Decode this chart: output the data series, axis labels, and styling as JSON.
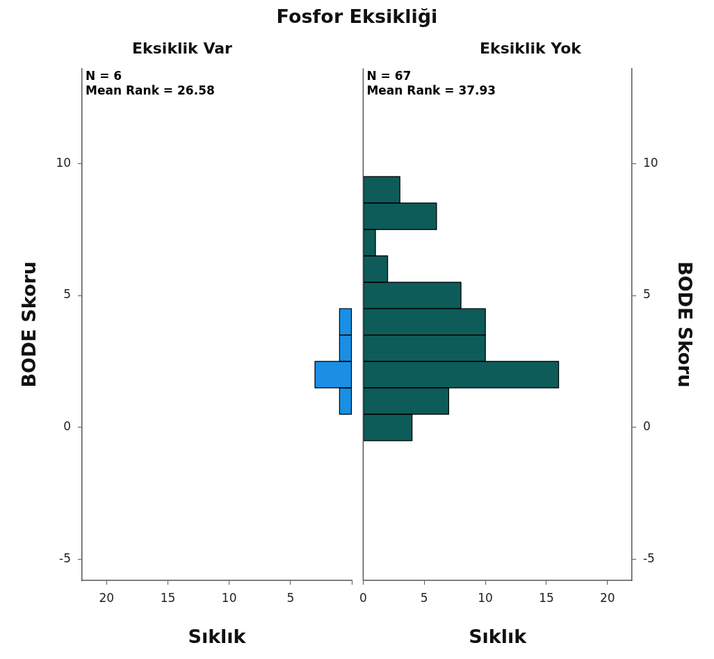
{
  "chart_data": [
    {
      "type": "histogram",
      "orientation": "horizontal",
      "title": "Fosfor Eksikliği",
      "subtitle": "Eksiklik Var",
      "xlabel": "Sıklık",
      "ylabel": "BODE Skoru",
      "bins": [
        0.5,
        1.5,
        2.5,
        3.5,
        4.5
      ],
      "values": [
        1,
        3,
        1,
        1
      ],
      "color": "#1a8fe3",
      "xlim": [
        22,
        0
      ],
      "xticks": [
        20,
        15,
        10,
        5,
        {
          "value": 0,
          "label": null
        }
      ],
      "ylim": [
        -5.8,
        13.6
      ],
      "yticks": [
        -5,
        0,
        5,
        10
      ],
      "annotations": [
        "N = 6",
        "Mean Rank = 26.58"
      ]
    },
    {
      "type": "histogram",
      "orientation": "horizontal",
      "subtitle": "Eksiklik Yok",
      "xlabel": "Sıklık",
      "ylabel": "BODE Skoru",
      "bins": [
        -0.5,
        0.5,
        1.5,
        2.5,
        3.5,
        4.5,
        5.5,
        6.5,
        7.5,
        8.5,
        9.5
      ],
      "values": [
        4,
        7,
        16,
        10,
        10,
        8,
        2,
        1,
        6,
        3
      ],
      "color": "#0d5c5a",
      "xlim": [
        0,
        22
      ],
      "xticks": [
        0,
        5,
        10,
        15,
        20
      ],
      "ylim": [
        -5.8,
        13.6
      ],
      "yticks": [
        -5,
        0,
        5,
        10
      ],
      "ref_lines": [
        {
          "axis": "x",
          "value": 0
        }
      ],
      "annotations": [
        "N = 67",
        "Mean Rank = 37.93"
      ]
    }
  ]
}
